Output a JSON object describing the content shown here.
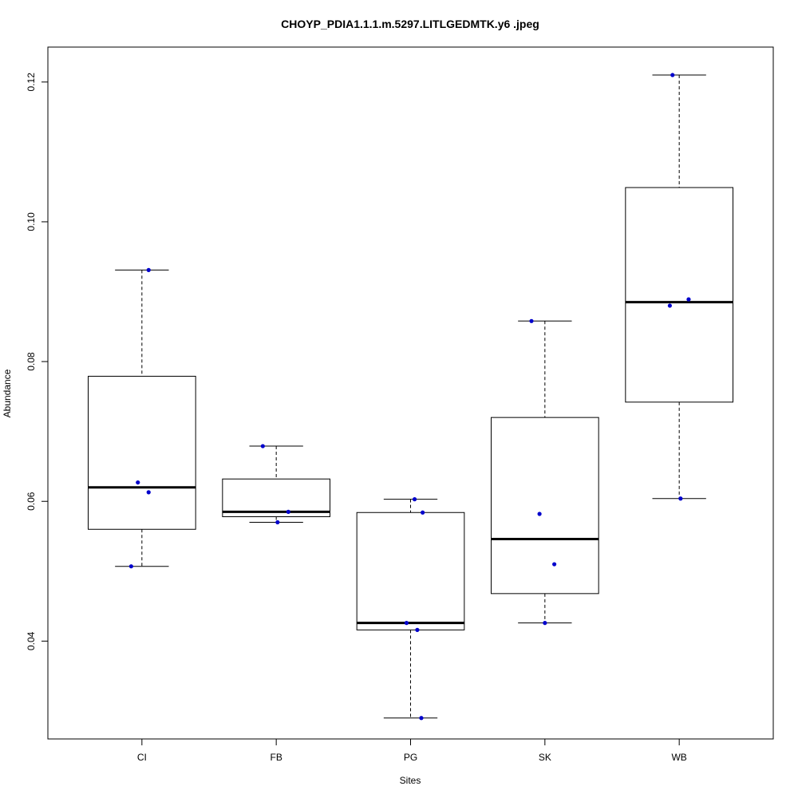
{
  "chart_data": {
    "type": "boxplot",
    "title": "CHOYP_PDIA1.1.1.m.5297.LITLGEDMTK.y6 .jpeg",
    "xlabel": "Sites",
    "ylabel": "Abundance",
    "ylim": [
      0.026,
      0.125
    ],
    "yticks": [
      "0.04",
      "0.06",
      "0.08",
      "0.10",
      "0.12"
    ],
    "categories": [
      "CI",
      "FB",
      "PG",
      "SK",
      "WB"
    ],
    "boxes": [
      {
        "name": "CI",
        "whisker_low": 0.0507,
        "q1": 0.056,
        "median": 0.062,
        "q3": 0.0779,
        "whisker_high": 0.0931
      },
      {
        "name": "FB",
        "whisker_low": 0.057,
        "q1": 0.0578,
        "median": 0.0585,
        "q3": 0.0632,
        "whisker_high": 0.0679
      },
      {
        "name": "PG",
        "whisker_low": 0.029,
        "q1": 0.0416,
        "median": 0.0426,
        "q3": 0.0584,
        "whisker_high": 0.0603
      },
      {
        "name": "SK",
        "whisker_low": 0.0426,
        "q1": 0.0468,
        "median": 0.0546,
        "q3": 0.072,
        "whisker_high": 0.0858
      },
      {
        "name": "WB",
        "whisker_low": 0.0604,
        "q1": 0.0742,
        "median": 0.0885,
        "q3": 0.1049,
        "whisker_high": 0.121
      }
    ],
    "points": [
      {
        "category": "CI",
        "jitter": -0.08,
        "y": 0.0507
      },
      {
        "category": "CI",
        "jitter": -0.03,
        "y": 0.0627
      },
      {
        "category": "CI",
        "jitter": 0.05,
        "y": 0.0613
      },
      {
        "category": "CI",
        "jitter": 0.05,
        "y": 0.0931
      },
      {
        "category": "FB",
        "jitter": -0.1,
        "y": 0.0679
      },
      {
        "category": "FB",
        "jitter": 0.09,
        "y": 0.0585
      },
      {
        "category": "FB",
        "jitter": 0.01,
        "y": 0.057
      },
      {
        "category": "PG",
        "jitter": 0.03,
        "y": 0.0603
      },
      {
        "category": "PG",
        "jitter": 0.09,
        "y": 0.0584
      },
      {
        "category": "PG",
        "jitter": -0.03,
        "y": 0.0426
      },
      {
        "category": "PG",
        "jitter": 0.05,
        "y": 0.0416
      },
      {
        "category": "PG",
        "jitter": 0.08,
        "y": 0.029
      },
      {
        "category": "SK",
        "jitter": -0.1,
        "y": 0.0858
      },
      {
        "category": "SK",
        "jitter": -0.04,
        "y": 0.0582
      },
      {
        "category": "SK",
        "jitter": 0.07,
        "y": 0.051
      },
      {
        "category": "SK",
        "jitter": 0.0,
        "y": 0.0426
      },
      {
        "category": "WB",
        "jitter": -0.05,
        "y": 0.121
      },
      {
        "category": "WB",
        "jitter": 0.07,
        "y": 0.0889
      },
      {
        "category": "WB",
        "jitter": -0.07,
        "y": 0.088
      },
      {
        "category": "WB",
        "jitter": 0.01,
        "y": 0.0604
      }
    ],
    "colors": {
      "point": "#0000cc",
      "box": "#000000"
    },
    "grid": false,
    "legend": "none"
  }
}
